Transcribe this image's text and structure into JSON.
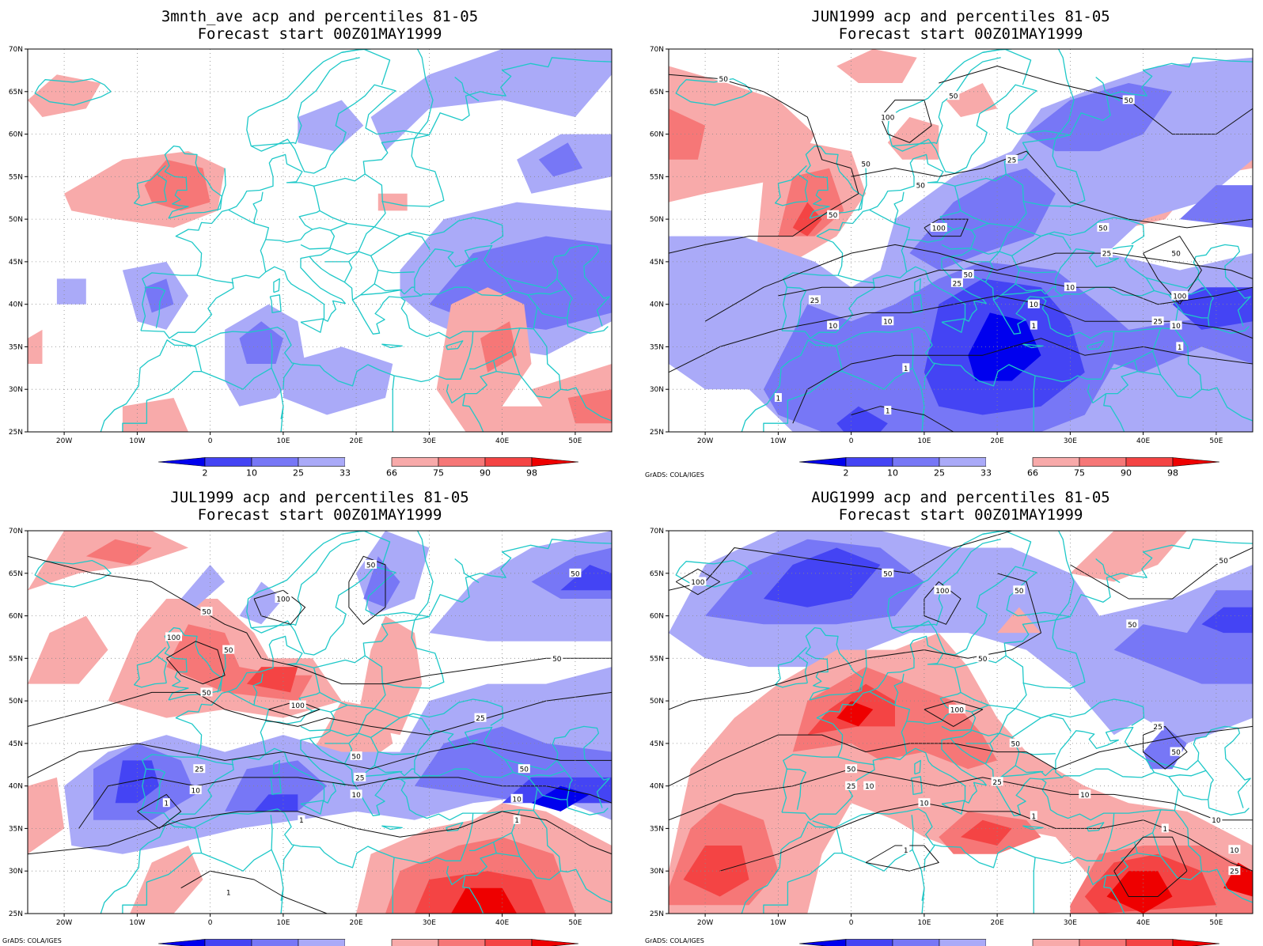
{
  "figure": {
    "credit": "GrADS: COLA/IGES",
    "colorbar": {
      "labels": [
        "2",
        "10",
        "25",
        "33",
        "66",
        "75",
        "90",
        "98"
      ],
      "colors": [
        "#0000ee",
        "#4444f4",
        "#7777f6",
        "#aaaaf8",
        "#ffffff",
        "#f8aaaa",
        "#f67777",
        "#f44444",
        "#ee0000"
      ]
    },
    "axes": {
      "lon_labels": [
        "20W",
        "10W",
        "0",
        "10E",
        "20E",
        "30E",
        "40E",
        "50E"
      ],
      "lat_labels": [
        "25N",
        "30N",
        "35N",
        "40N",
        "45N",
        "50N",
        "55N",
        "60N",
        "65N",
        "70N"
      ]
    }
  },
  "panels": [
    {
      "id": "p1",
      "title_line1": "3mnth_ave acp and percentiles 81-05",
      "title_line2": "Forecast start 00Z01MAY1999",
      "show_credit": false,
      "contour_labels": []
    },
    {
      "id": "p2",
      "title_line1": "JUN1999 acp and percentiles 81-05",
      "title_line2": "Forecast start 00Z01MAY1999",
      "show_credit": true,
      "contour_labels": [
        {
          "text": "50",
          "lon": -17.5,
          "lat": 66.5
        },
        {
          "text": "100",
          "lon": 5,
          "lat": 62
        },
        {
          "text": "50",
          "lon": 14,
          "lat": 64.5
        },
        {
          "text": "50",
          "lon": 38,
          "lat": 64
        },
        {
          "text": "25",
          "lon": 22,
          "lat": 57
        },
        {
          "text": "50",
          "lon": 2,
          "lat": 56.5
        },
        {
          "text": "50",
          "lon": 9.5,
          "lat": 54
        },
        {
          "text": "50",
          "lon": -2.5,
          "lat": 50.5
        },
        {
          "text": "100",
          "lon": 12,
          "lat": 49
        },
        {
          "text": "50",
          "lon": 34.5,
          "lat": 49
        },
        {
          "text": "25",
          "lon": 35,
          "lat": 46
        },
        {
          "text": "50",
          "lon": 44.5,
          "lat": 46
        },
        {
          "text": "50",
          "lon": 16,
          "lat": 43.5
        },
        {
          "text": "25",
          "lon": 14.5,
          "lat": 42.5
        },
        {
          "text": "10",
          "lon": 30,
          "lat": 42
        },
        {
          "text": "100",
          "lon": 45,
          "lat": 41
        },
        {
          "text": "25",
          "lon": -5,
          "lat": 40.5
        },
        {
          "text": "10",
          "lon": 25,
          "lat": 40
        },
        {
          "text": "10",
          "lon": -2.5,
          "lat": 37.5
        },
        {
          "text": "10",
          "lon": 5,
          "lat": 38
        },
        {
          "text": "1",
          "lon": 25,
          "lat": 37.5
        },
        {
          "text": "25",
          "lon": 42,
          "lat": 38
        },
        {
          "text": "10",
          "lon": 44.5,
          "lat": 37.5
        },
        {
          "text": "1",
          "lon": 45,
          "lat": 35
        },
        {
          "text": "1",
          "lon": 7.5,
          "lat": 32.5
        },
        {
          "text": "1",
          "lon": -10,
          "lat": 29
        },
        {
          "text": "1",
          "lon": 5,
          "lat": 27.5
        }
      ]
    },
    {
      "id": "p3",
      "title_line1": "JUL1999 acp and percentiles 81-05",
      "title_line2": "Forecast start 00Z01MAY1999",
      "show_credit": true,
      "contour_labels": [
        {
          "text": "50",
          "lon": 22,
          "lat": 66
        },
        {
          "text": "50",
          "lon": 50,
          "lat": 65
        },
        {
          "text": "100",
          "lon": 10,
          "lat": 62
        },
        {
          "text": "50",
          "lon": -0.5,
          "lat": 60.5
        },
        {
          "text": "100",
          "lon": -5,
          "lat": 57.5
        },
        {
          "text": "50",
          "lon": 2.5,
          "lat": 56
        },
        {
          "text": "50",
          "lon": 47.5,
          "lat": 55
        },
        {
          "text": "50",
          "lon": -0.5,
          "lat": 51
        },
        {
          "text": "100",
          "lon": 12,
          "lat": 49.5
        },
        {
          "text": "25",
          "lon": 37,
          "lat": 48
        },
        {
          "text": "50",
          "lon": 20,
          "lat": 43.5
        },
        {
          "text": "50",
          "lon": 43,
          "lat": 42
        },
        {
          "text": "25",
          "lon": -1.5,
          "lat": 42
        },
        {
          "text": "25",
          "lon": 20.5,
          "lat": 41
        },
        {
          "text": "10",
          "lon": -2,
          "lat": 39.5
        },
        {
          "text": "10",
          "lon": 20,
          "lat": 39
        },
        {
          "text": "10",
          "lon": 42,
          "lat": 38.5
        },
        {
          "text": "1",
          "lon": -6,
          "lat": 38
        },
        {
          "text": "1",
          "lon": 12.5,
          "lat": 36
        },
        {
          "text": "1",
          "lon": 42,
          "lat": 36
        },
        {
          "text": "1",
          "lon": 2.5,
          "lat": 27.5
        }
      ]
    },
    {
      "id": "p4",
      "title_line1": "AUG1999 acp and percentiles 81-05",
      "title_line2": "Forecast start 00Z01MAY1999",
      "show_credit": true,
      "contour_labels": [
        {
          "text": "50",
          "lon": 5,
          "lat": 65
        },
        {
          "text": "50",
          "lon": 51,
          "lat": 66.5
        },
        {
          "text": "100",
          "lon": -21,
          "lat": 64
        },
        {
          "text": "100",
          "lon": 12.5,
          "lat": 63
        },
        {
          "text": "50",
          "lon": 23,
          "lat": 63
        },
        {
          "text": "50",
          "lon": 38.5,
          "lat": 59
        },
        {
          "text": "50",
          "lon": 18,
          "lat": 55
        },
        {
          "text": "100",
          "lon": 14.5,
          "lat": 49
        },
        {
          "text": "25",
          "lon": 42,
          "lat": 47
        },
        {
          "text": "50",
          "lon": 22.5,
          "lat": 45
        },
        {
          "text": "50",
          "lon": 44.5,
          "lat": 44
        },
        {
          "text": "50",
          "lon": 0,
          "lat": 42
        },
        {
          "text": "25",
          "lon": 0,
          "lat": 40
        },
        {
          "text": "10",
          "lon": 2.5,
          "lat": 40
        },
        {
          "text": "25",
          "lon": 20,
          "lat": 40.5
        },
        {
          "text": "10",
          "lon": 32,
          "lat": 39
        },
        {
          "text": "10",
          "lon": 10,
          "lat": 38
        },
        {
          "text": "10",
          "lon": 50,
          "lat": 36
        },
        {
          "text": "1",
          "lon": 25,
          "lat": 36.5
        },
        {
          "text": "1",
          "lon": 43,
          "lat": 35
        },
        {
          "text": "10",
          "lon": 52.5,
          "lat": 32.5
        },
        {
          "text": "25",
          "lon": 52.5,
          "lat": 30
        },
        {
          "text": "1",
          "lon": 7.5,
          "lat": 32.5
        }
      ]
    }
  ]
}
